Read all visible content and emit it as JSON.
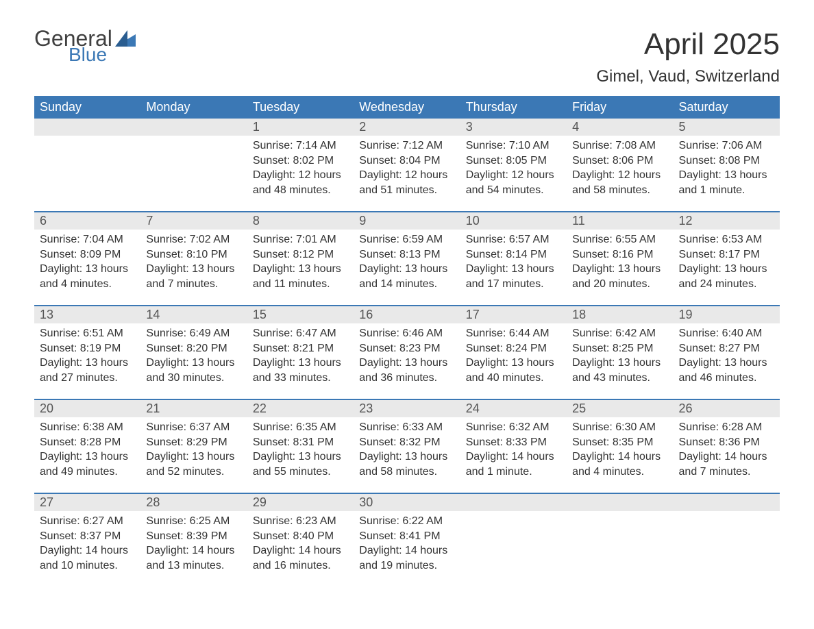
{
  "logo": {
    "general": "General",
    "blue": "Blue"
  },
  "title": "April 2025",
  "location": "Gimel, Vaud, Switzerland",
  "colors": {
    "header_bg": "#3b78b5",
    "band_bg": "#e9e9e9",
    "text": "#333333",
    "logo_blue": "#3b78b5"
  },
  "weekdays": [
    "Sunday",
    "Monday",
    "Tuesday",
    "Wednesday",
    "Thursday",
    "Friday",
    "Saturday"
  ],
  "weeks": [
    [
      null,
      null,
      {
        "n": "1",
        "sr": "Sunrise: 7:14 AM",
        "ss": "Sunset: 8:02 PM",
        "d1": "Daylight: 12 hours",
        "d2": "and 48 minutes."
      },
      {
        "n": "2",
        "sr": "Sunrise: 7:12 AM",
        "ss": "Sunset: 8:04 PM",
        "d1": "Daylight: 12 hours",
        "d2": "and 51 minutes."
      },
      {
        "n": "3",
        "sr": "Sunrise: 7:10 AM",
        "ss": "Sunset: 8:05 PM",
        "d1": "Daylight: 12 hours",
        "d2": "and 54 minutes."
      },
      {
        "n": "4",
        "sr": "Sunrise: 7:08 AM",
        "ss": "Sunset: 8:06 PM",
        "d1": "Daylight: 12 hours",
        "d2": "and 58 minutes."
      },
      {
        "n": "5",
        "sr": "Sunrise: 7:06 AM",
        "ss": "Sunset: 8:08 PM",
        "d1": "Daylight: 13 hours",
        "d2": "and 1 minute."
      }
    ],
    [
      {
        "n": "6",
        "sr": "Sunrise: 7:04 AM",
        "ss": "Sunset: 8:09 PM",
        "d1": "Daylight: 13 hours",
        "d2": "and 4 minutes."
      },
      {
        "n": "7",
        "sr": "Sunrise: 7:02 AM",
        "ss": "Sunset: 8:10 PM",
        "d1": "Daylight: 13 hours",
        "d2": "and 7 minutes."
      },
      {
        "n": "8",
        "sr": "Sunrise: 7:01 AM",
        "ss": "Sunset: 8:12 PM",
        "d1": "Daylight: 13 hours",
        "d2": "and 11 minutes."
      },
      {
        "n": "9",
        "sr": "Sunrise: 6:59 AM",
        "ss": "Sunset: 8:13 PM",
        "d1": "Daylight: 13 hours",
        "d2": "and 14 minutes."
      },
      {
        "n": "10",
        "sr": "Sunrise: 6:57 AM",
        "ss": "Sunset: 8:14 PM",
        "d1": "Daylight: 13 hours",
        "d2": "and 17 minutes."
      },
      {
        "n": "11",
        "sr": "Sunrise: 6:55 AM",
        "ss": "Sunset: 8:16 PM",
        "d1": "Daylight: 13 hours",
        "d2": "and 20 minutes."
      },
      {
        "n": "12",
        "sr": "Sunrise: 6:53 AM",
        "ss": "Sunset: 8:17 PM",
        "d1": "Daylight: 13 hours",
        "d2": "and 24 minutes."
      }
    ],
    [
      {
        "n": "13",
        "sr": "Sunrise: 6:51 AM",
        "ss": "Sunset: 8:19 PM",
        "d1": "Daylight: 13 hours",
        "d2": "and 27 minutes."
      },
      {
        "n": "14",
        "sr": "Sunrise: 6:49 AM",
        "ss": "Sunset: 8:20 PM",
        "d1": "Daylight: 13 hours",
        "d2": "and 30 minutes."
      },
      {
        "n": "15",
        "sr": "Sunrise: 6:47 AM",
        "ss": "Sunset: 8:21 PM",
        "d1": "Daylight: 13 hours",
        "d2": "and 33 minutes."
      },
      {
        "n": "16",
        "sr": "Sunrise: 6:46 AM",
        "ss": "Sunset: 8:23 PM",
        "d1": "Daylight: 13 hours",
        "d2": "and 36 minutes."
      },
      {
        "n": "17",
        "sr": "Sunrise: 6:44 AM",
        "ss": "Sunset: 8:24 PM",
        "d1": "Daylight: 13 hours",
        "d2": "and 40 minutes."
      },
      {
        "n": "18",
        "sr": "Sunrise: 6:42 AM",
        "ss": "Sunset: 8:25 PM",
        "d1": "Daylight: 13 hours",
        "d2": "and 43 minutes."
      },
      {
        "n": "19",
        "sr": "Sunrise: 6:40 AM",
        "ss": "Sunset: 8:27 PM",
        "d1": "Daylight: 13 hours",
        "d2": "and 46 minutes."
      }
    ],
    [
      {
        "n": "20",
        "sr": "Sunrise: 6:38 AM",
        "ss": "Sunset: 8:28 PM",
        "d1": "Daylight: 13 hours",
        "d2": "and 49 minutes."
      },
      {
        "n": "21",
        "sr": "Sunrise: 6:37 AM",
        "ss": "Sunset: 8:29 PM",
        "d1": "Daylight: 13 hours",
        "d2": "and 52 minutes."
      },
      {
        "n": "22",
        "sr": "Sunrise: 6:35 AM",
        "ss": "Sunset: 8:31 PM",
        "d1": "Daylight: 13 hours",
        "d2": "and 55 minutes."
      },
      {
        "n": "23",
        "sr": "Sunrise: 6:33 AM",
        "ss": "Sunset: 8:32 PM",
        "d1": "Daylight: 13 hours",
        "d2": "and 58 minutes."
      },
      {
        "n": "24",
        "sr": "Sunrise: 6:32 AM",
        "ss": "Sunset: 8:33 PM",
        "d1": "Daylight: 14 hours",
        "d2": "and 1 minute."
      },
      {
        "n": "25",
        "sr": "Sunrise: 6:30 AM",
        "ss": "Sunset: 8:35 PM",
        "d1": "Daylight: 14 hours",
        "d2": "and 4 minutes."
      },
      {
        "n": "26",
        "sr": "Sunrise: 6:28 AM",
        "ss": "Sunset: 8:36 PM",
        "d1": "Daylight: 14 hours",
        "d2": "and 7 minutes."
      }
    ],
    [
      {
        "n": "27",
        "sr": "Sunrise: 6:27 AM",
        "ss": "Sunset: 8:37 PM",
        "d1": "Daylight: 14 hours",
        "d2": "and 10 minutes."
      },
      {
        "n": "28",
        "sr": "Sunrise: 6:25 AM",
        "ss": "Sunset: 8:39 PM",
        "d1": "Daylight: 14 hours",
        "d2": "and 13 minutes."
      },
      {
        "n": "29",
        "sr": "Sunrise: 6:23 AM",
        "ss": "Sunset: 8:40 PM",
        "d1": "Daylight: 14 hours",
        "d2": "and 16 minutes."
      },
      {
        "n": "30",
        "sr": "Sunrise: 6:22 AM",
        "ss": "Sunset: 8:41 PM",
        "d1": "Daylight: 14 hours",
        "d2": "and 19 minutes."
      },
      null,
      null,
      null
    ]
  ]
}
